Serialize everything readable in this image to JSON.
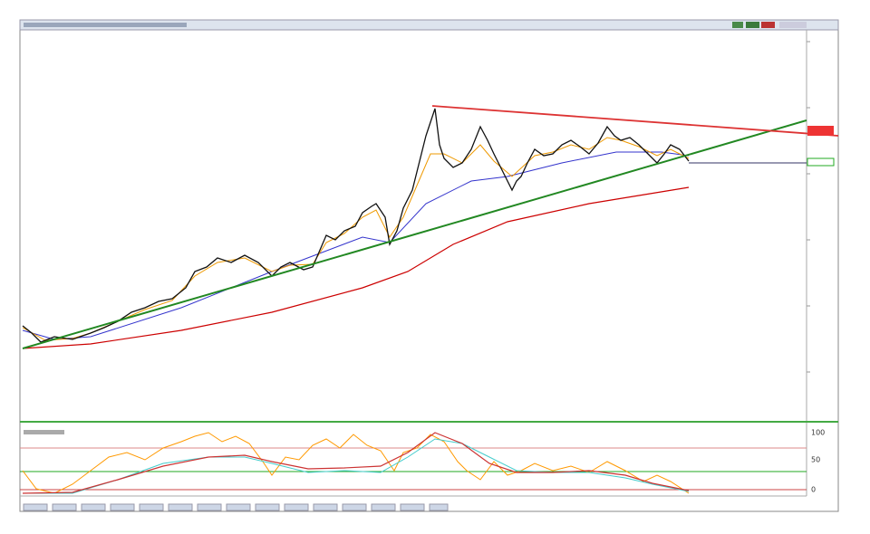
{
  "oscillator_axis": {
    "ticks": [
      "100",
      "50",
      "0"
    ]
  }
}
